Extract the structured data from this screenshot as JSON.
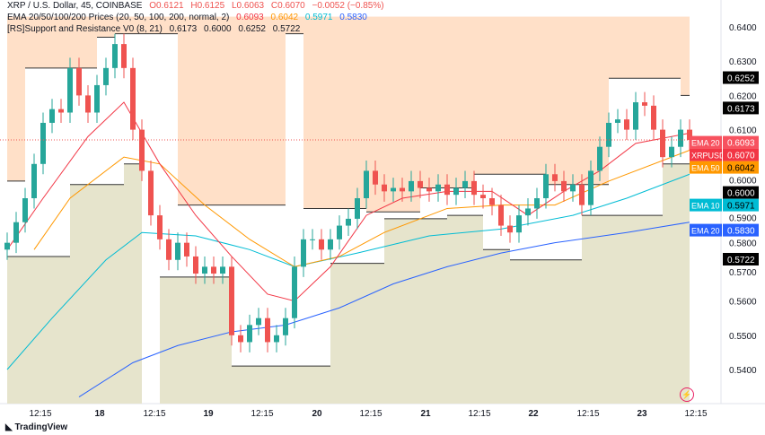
{
  "legend": {
    "symbol": "XRP / U.S. Dollar, 45, COINBASE",
    "o": "O0.6121",
    "h": "H0.6125",
    "l": "L0.6063",
    "c": "C0.6070",
    "change": "−0.0052 (−0.85%)",
    "ema_title": "EMA 20/50/100/200 Prices (20, 50, 100, 200, normal, 2)",
    "ema_values": [
      "0.6093",
      "0.6042",
      "0.5971",
      "0.5830"
    ],
    "sr_title": "[RS]Support and Resistance V0 (8, 21)",
    "sr_values": [
      "0.6173",
      "0.6000",
      "0.6252",
      "0.5722"
    ]
  },
  "footer": {
    "brand": "TradingView"
  },
  "colors": {
    "up": "#26a69a",
    "down": "#ef5350",
    "ema20": "#f23645",
    "ema50": "#ff9800",
    "ema100": "#00bcd4",
    "ema200": "#2962ff",
    "resistance_fill": "#ffe0c8",
    "support_fill": "#e6e4cc"
  },
  "chart_data": {
    "type": "candlestick",
    "ylim": [
      0.53,
      0.643
    ],
    "y_ticks": [
      "0.6400",
      "0.6300",
      "0.6200",
      "0.6100",
      "0.6000",
      "0.5900",
      "0.5800",
      "0.5700",
      "0.5600",
      "0.5500",
      "0.5400"
    ],
    "x_ticks": [
      "12:15",
      "18",
      "12:15",
      "19",
      "12:15",
      "20",
      "12:15",
      "21",
      "12:15",
      "22",
      "12:15",
      "23",
      "12:15"
    ],
    "closes": [
      0.577,
      0.583,
      0.59,
      0.6,
      0.612,
      0.616,
      0.615,
      0.628,
      0.62,
      0.615,
      0.623,
      0.628,
      0.635,
      0.628,
      0.61,
      0.598,
      0.585,
      0.578,
      0.572,
      0.577,
      0.573,
      0.568,
      0.57,
      0.568,
      0.57,
      0.55,
      0.548,
      0.553,
      0.555,
      0.548,
      0.55,
      0.555,
      0.57,
      0.578,
      0.578,
      0.575,
      0.578,
      0.582,
      0.584,
      0.59,
      0.598,
      0.594,
      0.592,
      0.593,
      0.592,
      0.595,
      0.593,
      0.592,
      0.594,
      0.591,
      0.593,
      0.595,
      0.591,
      0.59,
      0.588,
      0.582,
      0.58,
      0.585,
      0.587,
      0.59,
      0.597,
      0.595,
      0.592,
      0.594,
      0.588,
      0.598,
      0.605,
      0.612,
      0.613,
      0.61,
      0.618,
      0.617,
      0.61,
      0.602,
      0.605,
      0.61,
      0.607
    ],
    "ema20": [
      [
        0,
        0.575
      ],
      [
        4,
        0.59
      ],
      [
        9,
        0.608
      ],
      [
        13,
        0.618
      ],
      [
        17,
        0.6
      ],
      [
        21,
        0.585
      ],
      [
        25,
        0.573
      ],
      [
        29,
        0.562
      ],
      [
        32,
        0.56
      ],
      [
        36,
        0.57
      ],
      [
        40,
        0.585
      ],
      [
        44,
        0.59
      ],
      [
        49,
        0.592
      ],
      [
        54,
        0.592
      ],
      [
        58,
        0.585
      ],
      [
        62,
        0.592
      ],
      [
        66,
        0.598
      ],
      [
        70,
        0.606
      ],
      [
        76,
        0.609
      ]
    ],
    "ema50": [
      [
        3,
        0.575
      ],
      [
        7,
        0.59
      ],
      [
        13,
        0.602
      ],
      [
        17,
        0.6
      ],
      [
        22,
        0.588
      ],
      [
        27,
        0.578
      ],
      [
        32,
        0.57
      ],
      [
        37,
        0.573
      ],
      [
        42,
        0.58
      ],
      [
        49,
        0.587
      ],
      [
        55,
        0.588
      ],
      [
        61,
        0.588
      ],
      [
        67,
        0.595
      ],
      [
        76,
        0.604
      ]
    ],
    "ema100": [
      [
        0,
        0.54
      ],
      [
        5,
        0.555
      ],
      [
        11,
        0.572
      ],
      [
        15,
        0.58
      ],
      [
        21,
        0.579
      ],
      [
        27,
        0.575
      ],
      [
        32,
        0.57
      ],
      [
        39,
        0.574
      ],
      [
        47,
        0.579
      ],
      [
        55,
        0.581
      ],
      [
        63,
        0.585
      ],
      [
        69,
        0.59
      ],
      [
        76,
        0.597
      ]
    ],
    "ema200": [
      [
        8,
        0.532
      ],
      [
        14,
        0.542
      ],
      [
        19,
        0.547
      ],
      [
        25,
        0.551
      ],
      [
        31,
        0.553
      ],
      [
        37,
        0.558
      ],
      [
        43,
        0.565
      ],
      [
        49,
        0.57
      ],
      [
        55,
        0.574
      ],
      [
        61,
        0.577
      ],
      [
        69,
        0.58
      ],
      [
        76,
        0.583
      ]
    ],
    "resistance": [
      [
        0,
        2,
        0.595
      ],
      [
        2,
        10,
        0.628
      ],
      [
        10,
        12,
        0.637
      ],
      [
        12,
        19,
        0.638
      ],
      [
        19,
        31,
        0.588
      ],
      [
        31,
        33,
        0.638
      ],
      [
        33,
        40,
        0.587
      ],
      [
        40,
        46,
        0.586
      ],
      [
        46,
        52,
        0.593
      ],
      [
        52,
        57,
        0.597
      ],
      [
        57,
        60,
        0.597
      ],
      [
        60,
        67,
        0.594
      ],
      [
        67,
        75,
        0.625
      ],
      [
        75,
        76,
        0.62
      ]
    ],
    "support": [
      [
        0,
        7,
        0.573
      ],
      [
        7,
        13,
        0.594
      ],
      [
        13,
        15,
        0.6
      ],
      [
        17,
        25,
        0.567
      ],
      [
        25,
        30,
        0.541
      ],
      [
        30,
        36,
        0.541
      ],
      [
        36,
        42,
        0.571
      ],
      [
        42,
        49,
        0.584
      ],
      [
        49,
        53,
        0.585
      ],
      [
        53,
        56,
        0.575
      ],
      [
        56,
        58,
        0.572
      ],
      [
        58,
        64,
        0.572
      ],
      [
        64,
        73,
        0.585
      ],
      [
        73,
        76,
        0.6
      ]
    ],
    "price_labels": [
      {
        "text": "0.6252",
        "kind": "black"
      },
      {
        "text": "0.6173",
        "kind": "black"
      },
      {
        "name": "EMA 20",
        "text": "0.6093",
        "kind": "ema20"
      },
      {
        "name": "XRPUSD",
        "text": "0.6070",
        "kind": "price"
      },
      {
        "name": "EMA 50",
        "text": "0.6042",
        "kind": "ema50"
      },
      {
        "text": "0.6000",
        "kind": "black"
      },
      {
        "name": "EMA 10",
        "text": "0.5971",
        "kind": "ema100"
      },
      {
        "name": "EMA 20",
        "text": "0.5830",
        "kind": "ema200"
      },
      {
        "text": "0.5722",
        "kind": "black"
      }
    ]
  }
}
